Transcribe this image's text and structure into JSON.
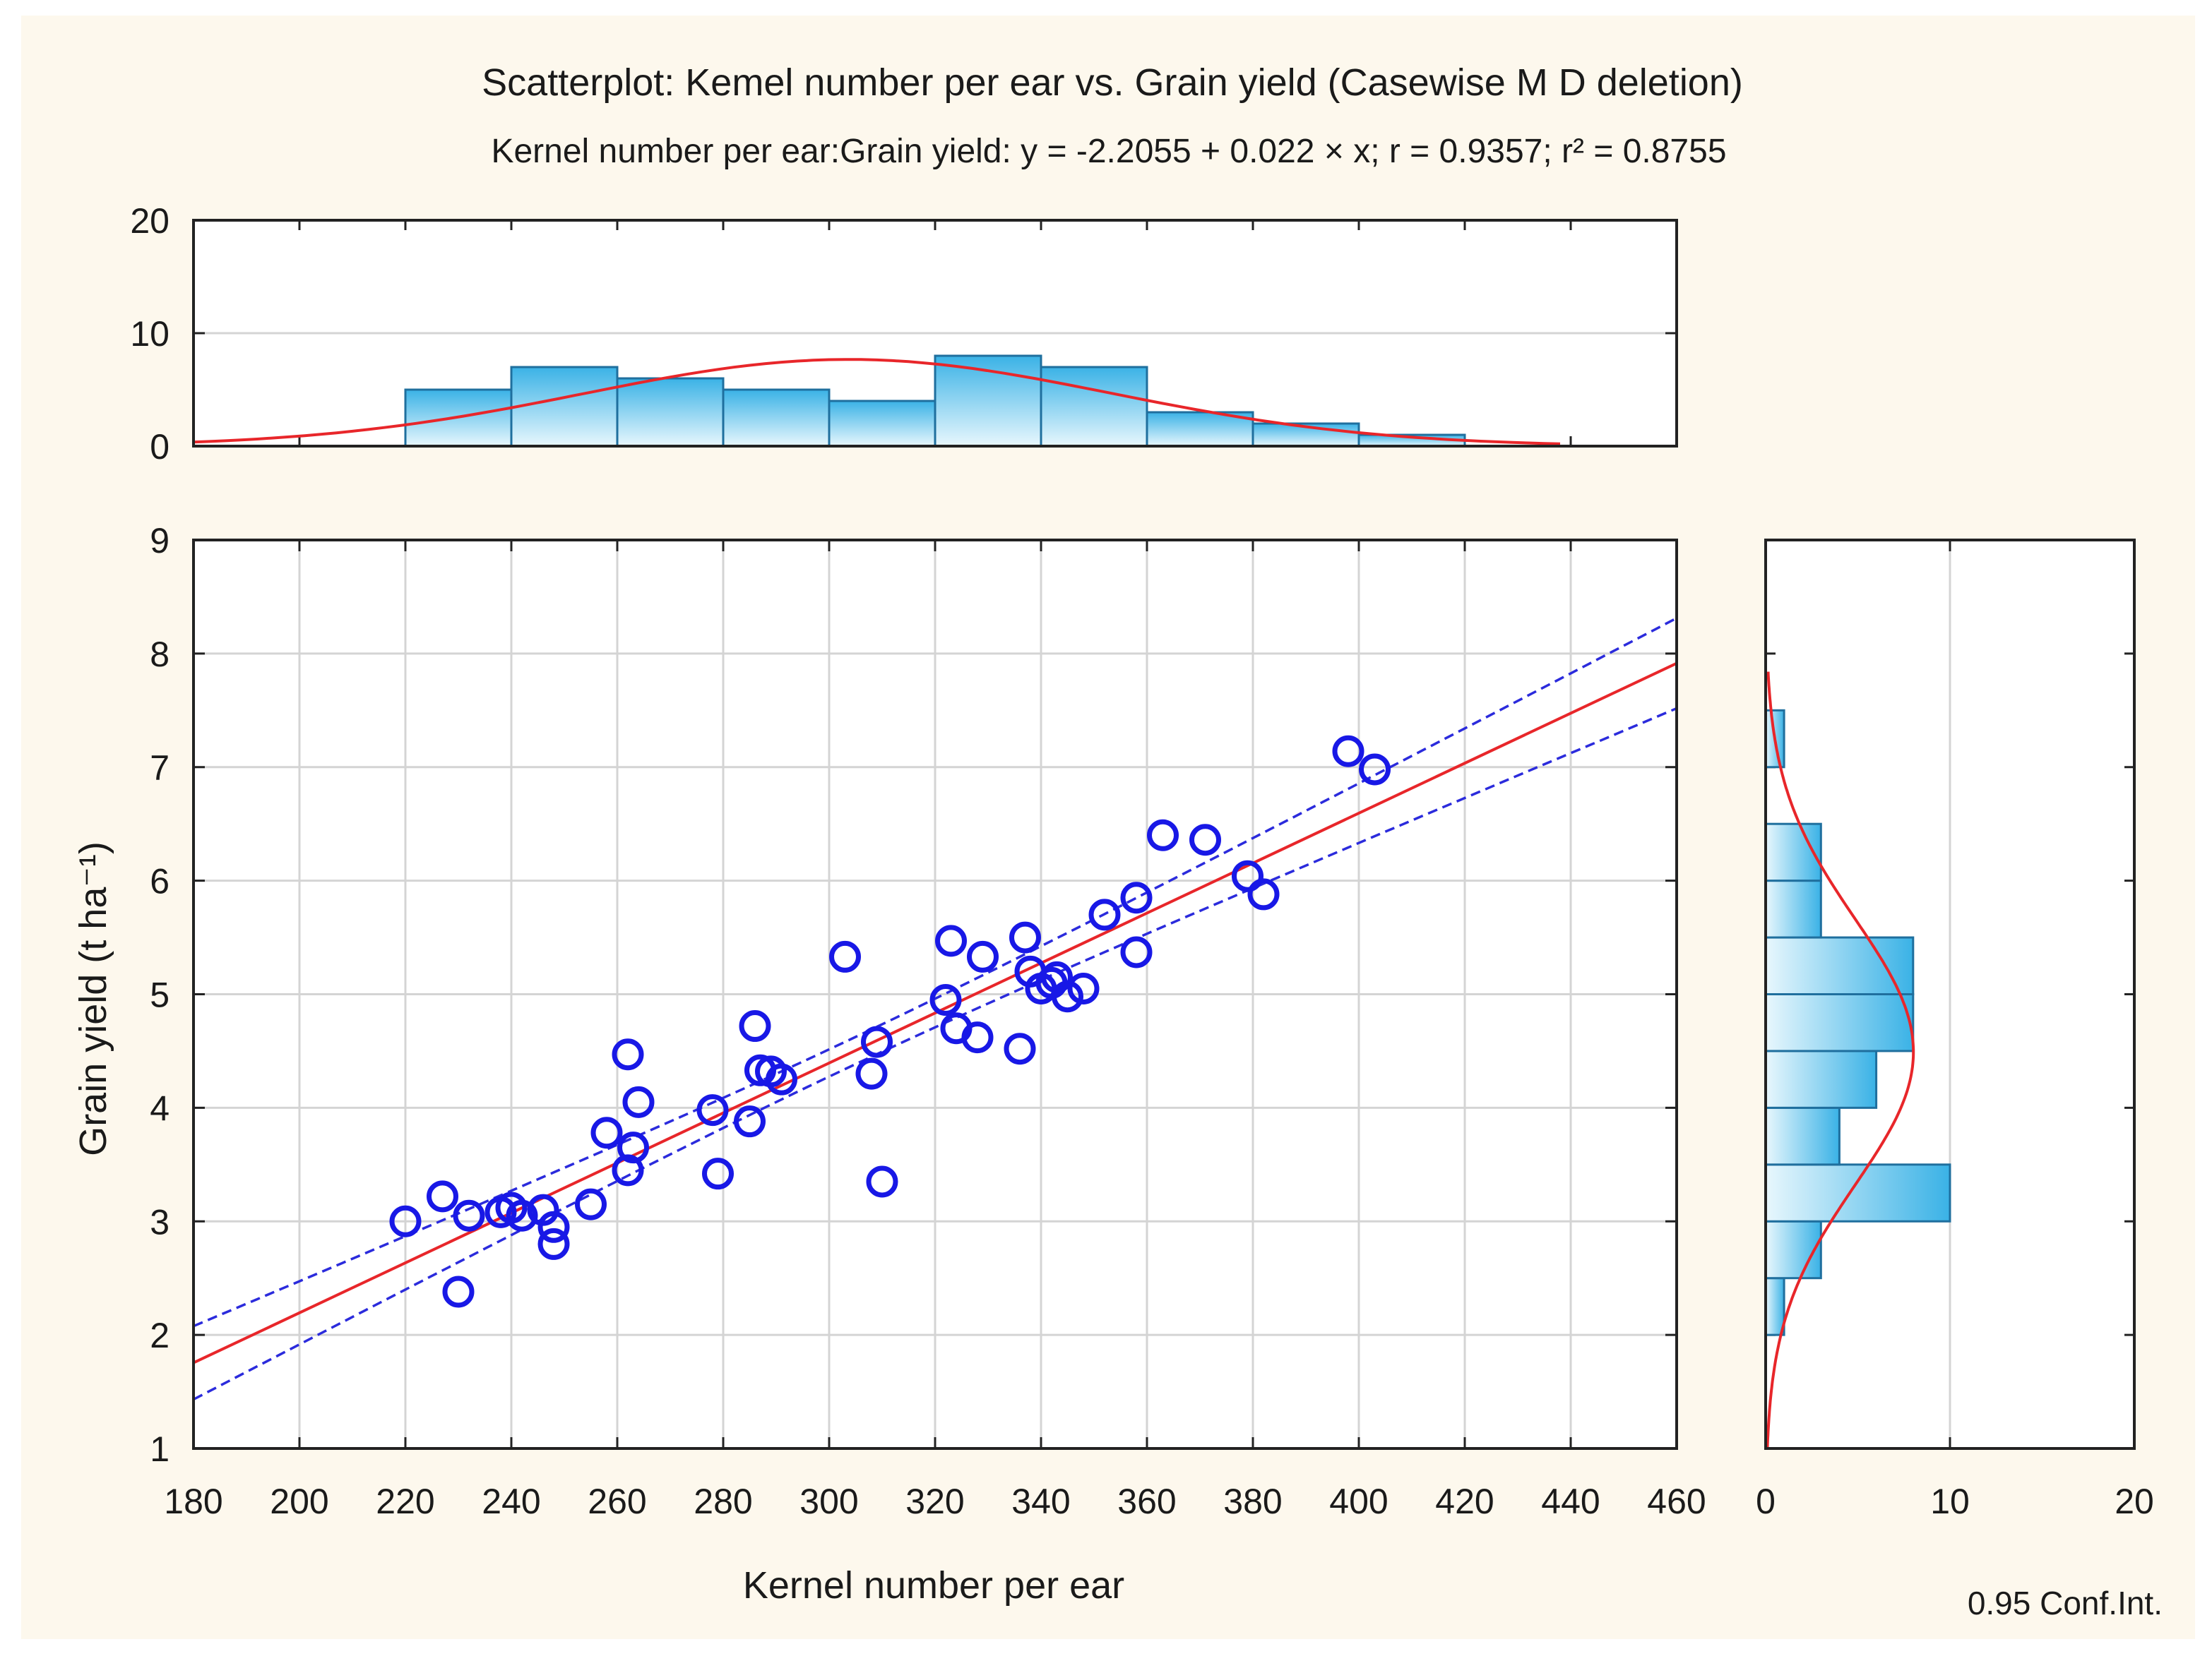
{
  "chart_data": {
    "type": "scatter",
    "title": "Scatterplot: Kemel number per ear vs. Grain yield (Casewise M D deletion)",
    "subtitle": "Kernel number per ear:Grain yield: y = -2.2055 + 0.022 × x;  r = 0.9357; r² = 0.8755",
    "xlabel": "Kernel number per ear",
    "ylabel": "Grain yield (t ha⁻¹)",
    "xlim": [
      180,
      460
    ],
    "ylim": [
      1,
      9
    ],
    "xticks": [
      "180",
      "200",
      "220",
      "240",
      "260",
      "280",
      "300",
      "320",
      "340",
      "360",
      "380",
      "400",
      "420",
      "440",
      "460"
    ],
    "yticks": [
      "1",
      "2",
      "3",
      "4",
      "5",
      "6",
      "7",
      "8",
      "9"
    ],
    "grid": true,
    "regression": {
      "intercept": -2.2055,
      "slope": 0.022,
      "r": 0.9357,
      "r2": 0.8755
    },
    "conf_label": "0.95 Conf.Int.",
    "points": [
      {
        "x": 220,
        "y": 3.0
      },
      {
        "x": 227,
        "y": 3.22
      },
      {
        "x": 230,
        "y": 2.38
      },
      {
        "x": 232,
        "y": 3.05
      },
      {
        "x": 238,
        "y": 3.08
      },
      {
        "x": 240,
        "y": 3.12
      },
      {
        "x": 242,
        "y": 3.05
      },
      {
        "x": 246,
        "y": 3.1
      },
      {
        "x": 248,
        "y": 2.95
      },
      {
        "x": 248,
        "y": 2.8
      },
      {
        "x": 255,
        "y": 3.15
      },
      {
        "x": 258,
        "y": 3.78
      },
      {
        "x": 262,
        "y": 4.47
      },
      {
        "x": 262,
        "y": 3.45
      },
      {
        "x": 263,
        "y": 3.65
      },
      {
        "x": 264,
        "y": 4.05
      },
      {
        "x": 278,
        "y": 3.98
      },
      {
        "x": 279,
        "y": 3.42
      },
      {
        "x": 285,
        "y": 3.88
      },
      {
        "x": 286,
        "y": 4.72
      },
      {
        "x": 287,
        "y": 4.33
      },
      {
        "x": 289,
        "y": 4.32
      },
      {
        "x": 291,
        "y": 4.25
      },
      {
        "x": 303,
        "y": 5.33
      },
      {
        "x": 308,
        "y": 4.3
      },
      {
        "x": 309,
        "y": 4.58
      },
      {
        "x": 310,
        "y": 3.35
      },
      {
        "x": 322,
        "y": 4.95
      },
      {
        "x": 323,
        "y": 5.47
      },
      {
        "x": 324,
        "y": 4.7
      },
      {
        "x": 328,
        "y": 4.62
      },
      {
        "x": 329,
        "y": 5.33
      },
      {
        "x": 336,
        "y": 4.52
      },
      {
        "x": 337,
        "y": 5.5
      },
      {
        "x": 338,
        "y": 5.2
      },
      {
        "x": 340,
        "y": 5.05
      },
      {
        "x": 342,
        "y": 5.1
      },
      {
        "x": 343,
        "y": 5.15
      },
      {
        "x": 345,
        "y": 4.98
      },
      {
        "x": 348,
        "y": 5.05
      },
      {
        "x": 352,
        "y": 5.7
      },
      {
        "x": 358,
        "y": 5.85
      },
      {
        "x": 358,
        "y": 5.37
      },
      {
        "x": 363,
        "y": 6.4
      },
      {
        "x": 371,
        "y": 6.36
      },
      {
        "x": 379,
        "y": 6.04
      },
      {
        "x": 382,
        "y": 5.88
      },
      {
        "x": 398,
        "y": 7.14
      },
      {
        "x": 403,
        "y": 6.98
      }
    ],
    "top_histogram": {
      "axis": "Kernel number per ear",
      "count_ticks": [
        "0",
        "10",
        "20"
      ],
      "count_range": [
        0,
        20
      ],
      "bin_edges": [
        220,
        240,
        260,
        280,
        300,
        320,
        340,
        360,
        380,
        400,
        420
      ],
      "counts": [
        5,
        7,
        6,
        5,
        4,
        8,
        7,
        3,
        2,
        1
      ]
    },
    "right_histogram": {
      "axis": "Grain yield",
      "count_ticks": [
        "0",
        "10",
        "20"
      ],
      "count_range": [
        0,
        20
      ],
      "bin_edges": [
        2.0,
        2.5,
        3.0,
        3.5,
        4.0,
        4.5,
        5.0,
        5.5,
        6.0,
        6.5,
        7.0,
        7.5
      ],
      "counts": [
        1,
        3,
        10,
        4,
        6,
        8,
        8,
        3,
        3,
        0,
        1
      ]
    }
  }
}
